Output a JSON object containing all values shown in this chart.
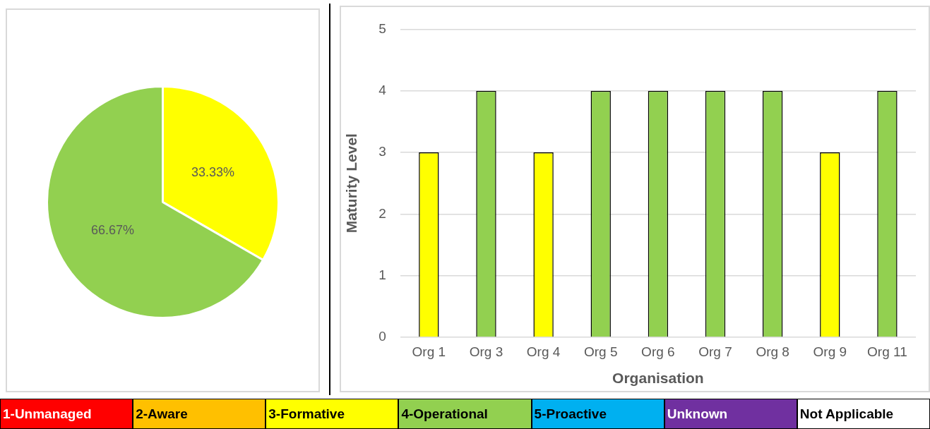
{
  "chart_data": [
    {
      "type": "pie",
      "categories": [
        null,
        null
      ],
      "values": [
        33.33,
        66.67
      ],
      "colors": [
        "#ffff00",
        "#92d050"
      ],
      "value_labels": [
        "33.33%",
        "66.67%"
      ],
      "legend": false
    },
    {
      "type": "bar",
      "categories": [
        "Org 1",
        "Org 3",
        "Org 4",
        "Org 5",
        "Org 6",
        "Org 7",
        "Org 8",
        "Org 9",
        "Org 11"
      ],
      "values": [
        3,
        4,
        3,
        4,
        4,
        4,
        4,
        3,
        4
      ],
      "colors": [
        "#ffff00",
        "#92d050",
        "#ffff00",
        "#92d050",
        "#92d050",
        "#92d050",
        "#92d050",
        "#ffff00",
        "#92d050"
      ],
      "xlabel": "Organisation",
      "ylabel": "Maturity Level",
      "ylim": [
        0,
        5
      ],
      "yticks": [
        0,
        1,
        2,
        3,
        4,
        5
      ],
      "grid": "y",
      "legend": false
    },
    {
      "type": "other",
      "categories": [
        "1-Unmanaged",
        "2-Aware",
        "3-Formative",
        "4-Operational",
        "5-Proactive",
        "Unknown",
        "Not Applicable"
      ],
      "colors": [
        "#ff0000",
        "#ffc000",
        "#ffff00",
        "#92d050",
        "#00b0f0",
        "#7030a0",
        "#ffffff"
      ]
    }
  ]
}
